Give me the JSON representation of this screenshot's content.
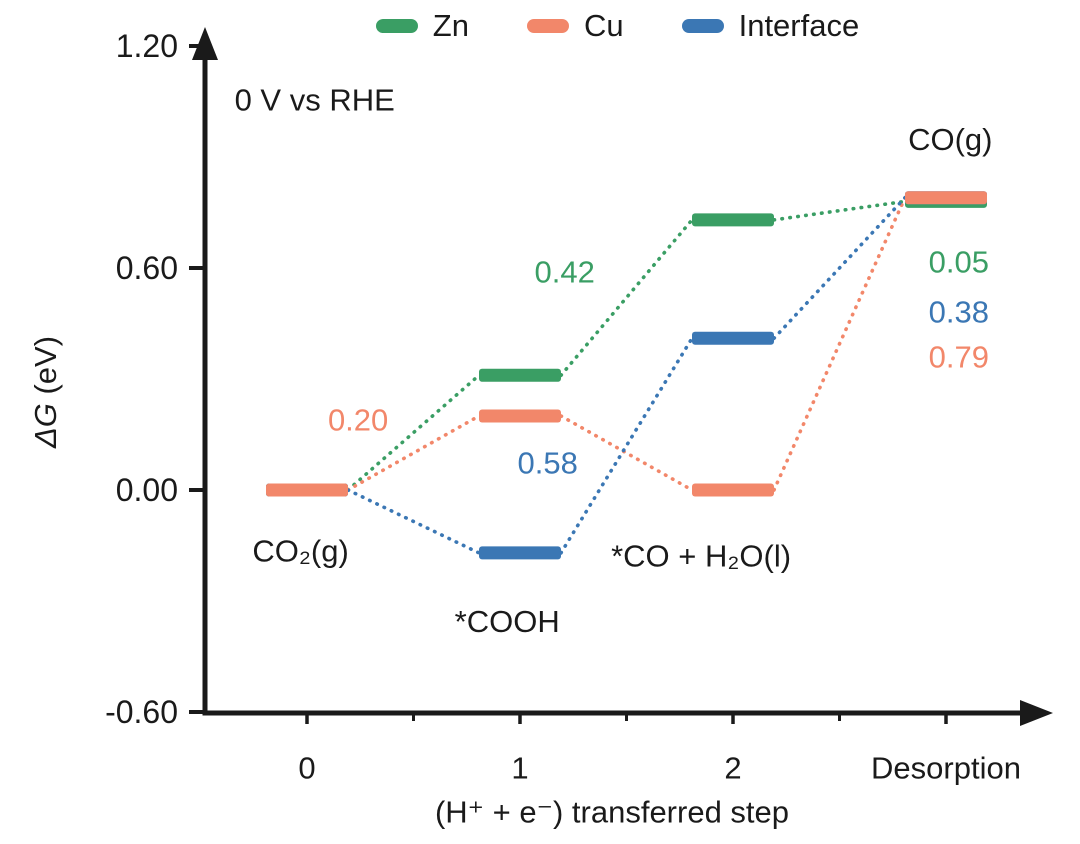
{
  "figure": {
    "background": "#ffffff",
    "ink_color": "#1a1a1a"
  },
  "legend": {
    "items": [
      {
        "label": "Zn",
        "color": "#3a9e64"
      },
      {
        "label": "Cu",
        "color": "#f2876a"
      },
      {
        "label": "Interface",
        "color": "#3b77b4"
      }
    ]
  },
  "chart_data": {
    "type": "line",
    "subtype": "reaction-free-energy-step-diagram",
    "annotation": "0 V vs RHE",
    "annotation_pos": {
      "x": -0.34,
      "y": 1.054
    },
    "xlabel": "(H⁺ + e⁻) transferred step",
    "ylabel": "ΔG (eV)",
    "ylabel_parts": [
      {
        "text": "ΔG",
        "italic": true
      },
      {
        "text": " (eV)",
        "italic": false
      }
    ],
    "ylim": [
      -0.6,
      1.2
    ],
    "yticks": [
      {
        "value": 1.2,
        "label": "1.20"
      },
      {
        "value": 0.6,
        "label": "0.60"
      },
      {
        "value": 0.0,
        "label": "0.00"
      },
      {
        "value": -0.6,
        "label": "-0.60"
      }
    ],
    "xticks": [
      {
        "x": 0,
        "label": "0"
      },
      {
        "x": 1,
        "label": "1"
      },
      {
        "x": 2,
        "label": "2"
      },
      {
        "x": 3,
        "label": "Desorption"
      }
    ],
    "minor_xticks": [
      0.5,
      1.5,
      2.5
    ],
    "states": [
      "CO₂(g)",
      "*COOH",
      "*CO + H₂O(l)",
      "CO(g)"
    ],
    "series": [
      {
        "name": "Zn",
        "color": "#3a9e64",
        "values": [
          0.0,
          0.31,
          0.73,
          0.78
        ]
      },
      {
        "name": "Cu",
        "color": "#f2876a",
        "values": [
          0.0,
          0.2,
          0.0,
          0.79
        ]
      },
      {
        "name": "Interface",
        "color": "#3b77b4",
        "values": [
          0.0,
          -0.17,
          0.41,
          0.79
        ]
      }
    ],
    "state_labels": [
      {
        "text": "CO₂(g)",
        "x": -0.03,
        "y": -0.165
      },
      {
        "text": "*COOH",
        "x": 0.94,
        "y": -0.355
      },
      {
        "text": "*CO + H₂O(l)",
        "x": 1.85,
        "y": -0.178
      },
      {
        "text": "CO(g)",
        "x": 3.02,
        "y": 0.947
      }
    ],
    "value_labels": [
      {
        "text": "0.42",
        "series": "Zn",
        "x": 1.21,
        "y": 0.589
      },
      {
        "text": "0.20",
        "series": "Cu",
        "x": 0.24,
        "y": 0.189
      },
      {
        "text": "0.58",
        "series": "Interface",
        "x": 1.13,
        "y": 0.073
      },
      {
        "text": "0.05",
        "series": "Zn",
        "x": 3.06,
        "y": 0.616
      },
      {
        "text": "0.38",
        "series": "Interface",
        "x": 3.06,
        "y": 0.481
      },
      {
        "text": "0.79",
        "series": "Cu",
        "x": 3.06,
        "y": 0.359
      }
    ]
  }
}
